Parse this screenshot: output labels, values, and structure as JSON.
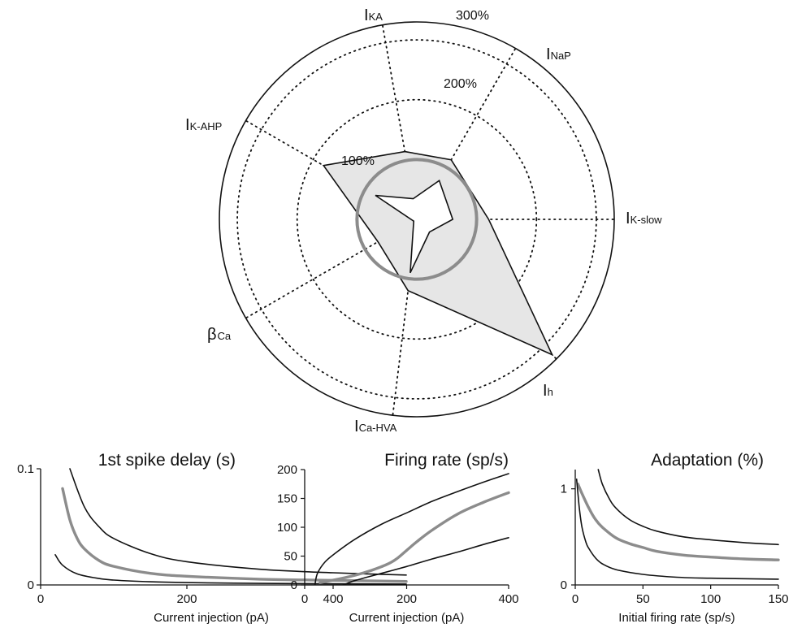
{
  "chart_data": [
    {
      "type": "radar",
      "axes": [
        {
          "id": "ika",
          "main": "I",
          "sub": "KA"
        },
        {
          "id": "inap",
          "main": "I",
          "sub": "NaP"
        },
        {
          "id": "ikslow",
          "main": "I",
          "sub": "K-slow"
        },
        {
          "id": "ih",
          "main": "I",
          "sub": "h"
        },
        {
          "id": "icahva",
          "main": "I",
          "sub": "Ca-HVA"
        },
        {
          "id": "bca",
          "main": "β",
          "sub": "Ca"
        },
        {
          "id": "ikahp",
          "main": "I",
          "sub": "K-AHP"
        }
      ],
      "rings": [
        {
          "label": "100%",
          "value": 100
        },
        {
          "label": "200%",
          "value": 200
        },
        {
          "label": "300%",
          "value": 300
        }
      ],
      "outer_limit": 330,
      "upper_bound": [
        115,
        115,
        120,
        320,
        120,
        75,
        180
      ],
      "lower_bound": [
        35,
        75,
        60,
        30,
        90,
        6,
        80
      ],
      "reference_value": 100
    },
    {
      "type": "line",
      "title": "1st spike delay (s)",
      "xlabel": "Current injection (pA)",
      "xlim": [
        0,
        500
      ],
      "ylim": [
        0,
        0.1
      ],
      "xticks": [
        "0",
        "200",
        "400"
      ],
      "yticks": [
        "0",
        "0.1"
      ],
      "series": [
        {
          "role": "upper",
          "x": [
            40,
            60,
            80,
            100,
            150,
            200,
            300,
            400,
            500
          ],
          "y": [
            0.1,
            0.067,
            0.05,
            0.04,
            0.027,
            0.02,
            0.0135,
            0.0105,
            0.0085
          ]
        },
        {
          "role": "mid",
          "x": [
            30,
            40,
            50,
            60,
            80,
            100,
            150,
            200,
            300,
            400,
            500
          ],
          "y": [
            0.083,
            0.056,
            0.04,
            0.031,
            0.021,
            0.016,
            0.01,
            0.0075,
            0.005,
            0.004,
            0.003
          ]
        },
        {
          "role": "lower",
          "x": [
            20,
            30,
            50,
            80,
            100,
            150,
            200,
            300,
            400,
            500
          ],
          "y": [
            0.026,
            0.017,
            0.0095,
            0.0055,
            0.0042,
            0.0027,
            0.002,
            0.0013,
            0.001,
            0.0008
          ]
        }
      ]
    },
    {
      "type": "line",
      "title": "Firing rate (sp/s)",
      "xlabel": "Current injection (pA)",
      "xlim": [
        0,
        400
      ],
      "ylim": [
        0,
        200
      ],
      "xticks": [
        "0",
        "200",
        "400"
      ],
      "yticks": [
        "0",
        "50",
        "100",
        "150",
        "200"
      ],
      "series": [
        {
          "role": "upper",
          "x": [
            20,
            25,
            40,
            60,
            100,
            150,
            200,
            250,
            300,
            350,
            400
          ],
          "y": [
            0,
            20,
            40,
            55,
            80,
            105,
            125,
            145,
            162,
            178,
            193
          ]
        },
        {
          "role": "mid",
          "x": [
            30,
            60,
            100,
            130,
            160,
            180,
            200,
            220,
            250,
            300,
            350,
            400
          ],
          "y": [
            4,
            9,
            17,
            25,
            35,
            45,
            60,
            75,
            95,
            123,
            143,
            160
          ]
        },
        {
          "role": "lower",
          "x": [
            75,
            100,
            150,
            200,
            250,
            300,
            350,
            400
          ],
          "y": [
            0,
            8,
            20,
            32,
            45,
            57,
            70,
            82
          ]
        }
      ]
    },
    {
      "type": "line",
      "title": "Adaptation (%)",
      "xlabel": "Initial firing rate (sp/s)",
      "xlim": [
        0,
        150
      ],
      "ylim": [
        0,
        1.2
      ],
      "xticks": [
        "0",
        "50",
        "100",
        "150"
      ],
      "yticks": [
        "0",
        "1"
      ],
      "series": [
        {
          "role": "upper",
          "x": [
            17,
            20,
            25,
            30,
            40,
            50,
            60,
            80,
            100,
            125,
            150
          ],
          "y": [
            1.2,
            1.05,
            0.9,
            0.8,
            0.68,
            0.61,
            0.56,
            0.5,
            0.47,
            0.44,
            0.42
          ]
        },
        {
          "role": "mid",
          "x": [
            2,
            5,
            10,
            15,
            20,
            30,
            40,
            50,
            60,
            80,
            100,
            125,
            150
          ],
          "y": [
            1.05,
            0.95,
            0.8,
            0.68,
            0.6,
            0.49,
            0.43,
            0.39,
            0.35,
            0.31,
            0.29,
            0.27,
            0.26
          ]
        },
        {
          "role": "lower",
          "x": [
            1,
            2,
            3,
            5,
            8,
            10,
            15,
            20,
            30,
            50,
            75,
            100,
            150
          ],
          "y": [
            1.1,
            0.95,
            0.8,
            0.6,
            0.44,
            0.38,
            0.28,
            0.22,
            0.16,
            0.11,
            0.08,
            0.07,
            0.06
          ]
        }
      ]
    }
  ],
  "colors": {
    "polygon_fill": "#e6e6e6",
    "black": "#111111",
    "gray": "#8c8c8c"
  }
}
